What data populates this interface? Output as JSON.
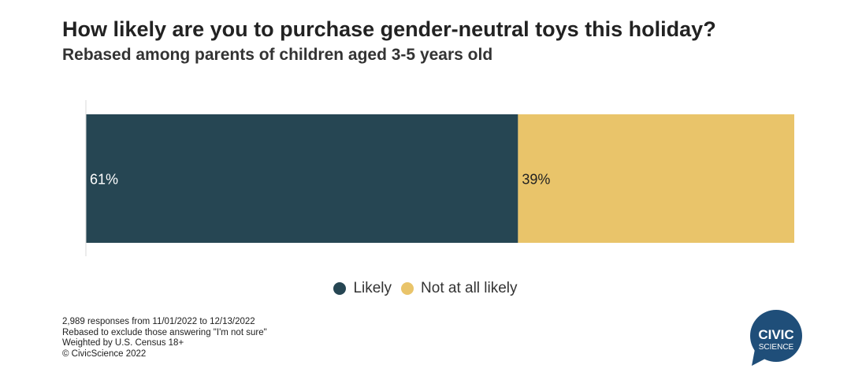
{
  "header": {
    "title": "How likely are you to purchase gender-neutral toys this holiday?",
    "subtitle": "Rebased among parents of children aged 3-5 years old"
  },
  "chart_data": {
    "type": "bar",
    "orientation": "horizontal-stacked-100",
    "categories": [
      ""
    ],
    "series": [
      {
        "name": "Likely",
        "values": [
          61
        ],
        "label": "61%",
        "color": "#264653"
      },
      {
        "name": "Not at all likely",
        "values": [
          39
        ],
        "label": "39%",
        "color": "#e9c46a"
      }
    ],
    "xlim": [
      0,
      100
    ],
    "grid": false,
    "legend_position": "bottom-center"
  },
  "footnotes": [
    "2,989 responses from 11/01/2022 to 12/13/2022",
    "Rebased to exclude those answering \"I'm not sure\"",
    "Weighted by U.S. Census 18+",
    "© CivicScience 2022"
  ],
  "logo": {
    "line1": "CIVIC",
    "line2": "SCIENCE",
    "color": "#1f4e79"
  }
}
